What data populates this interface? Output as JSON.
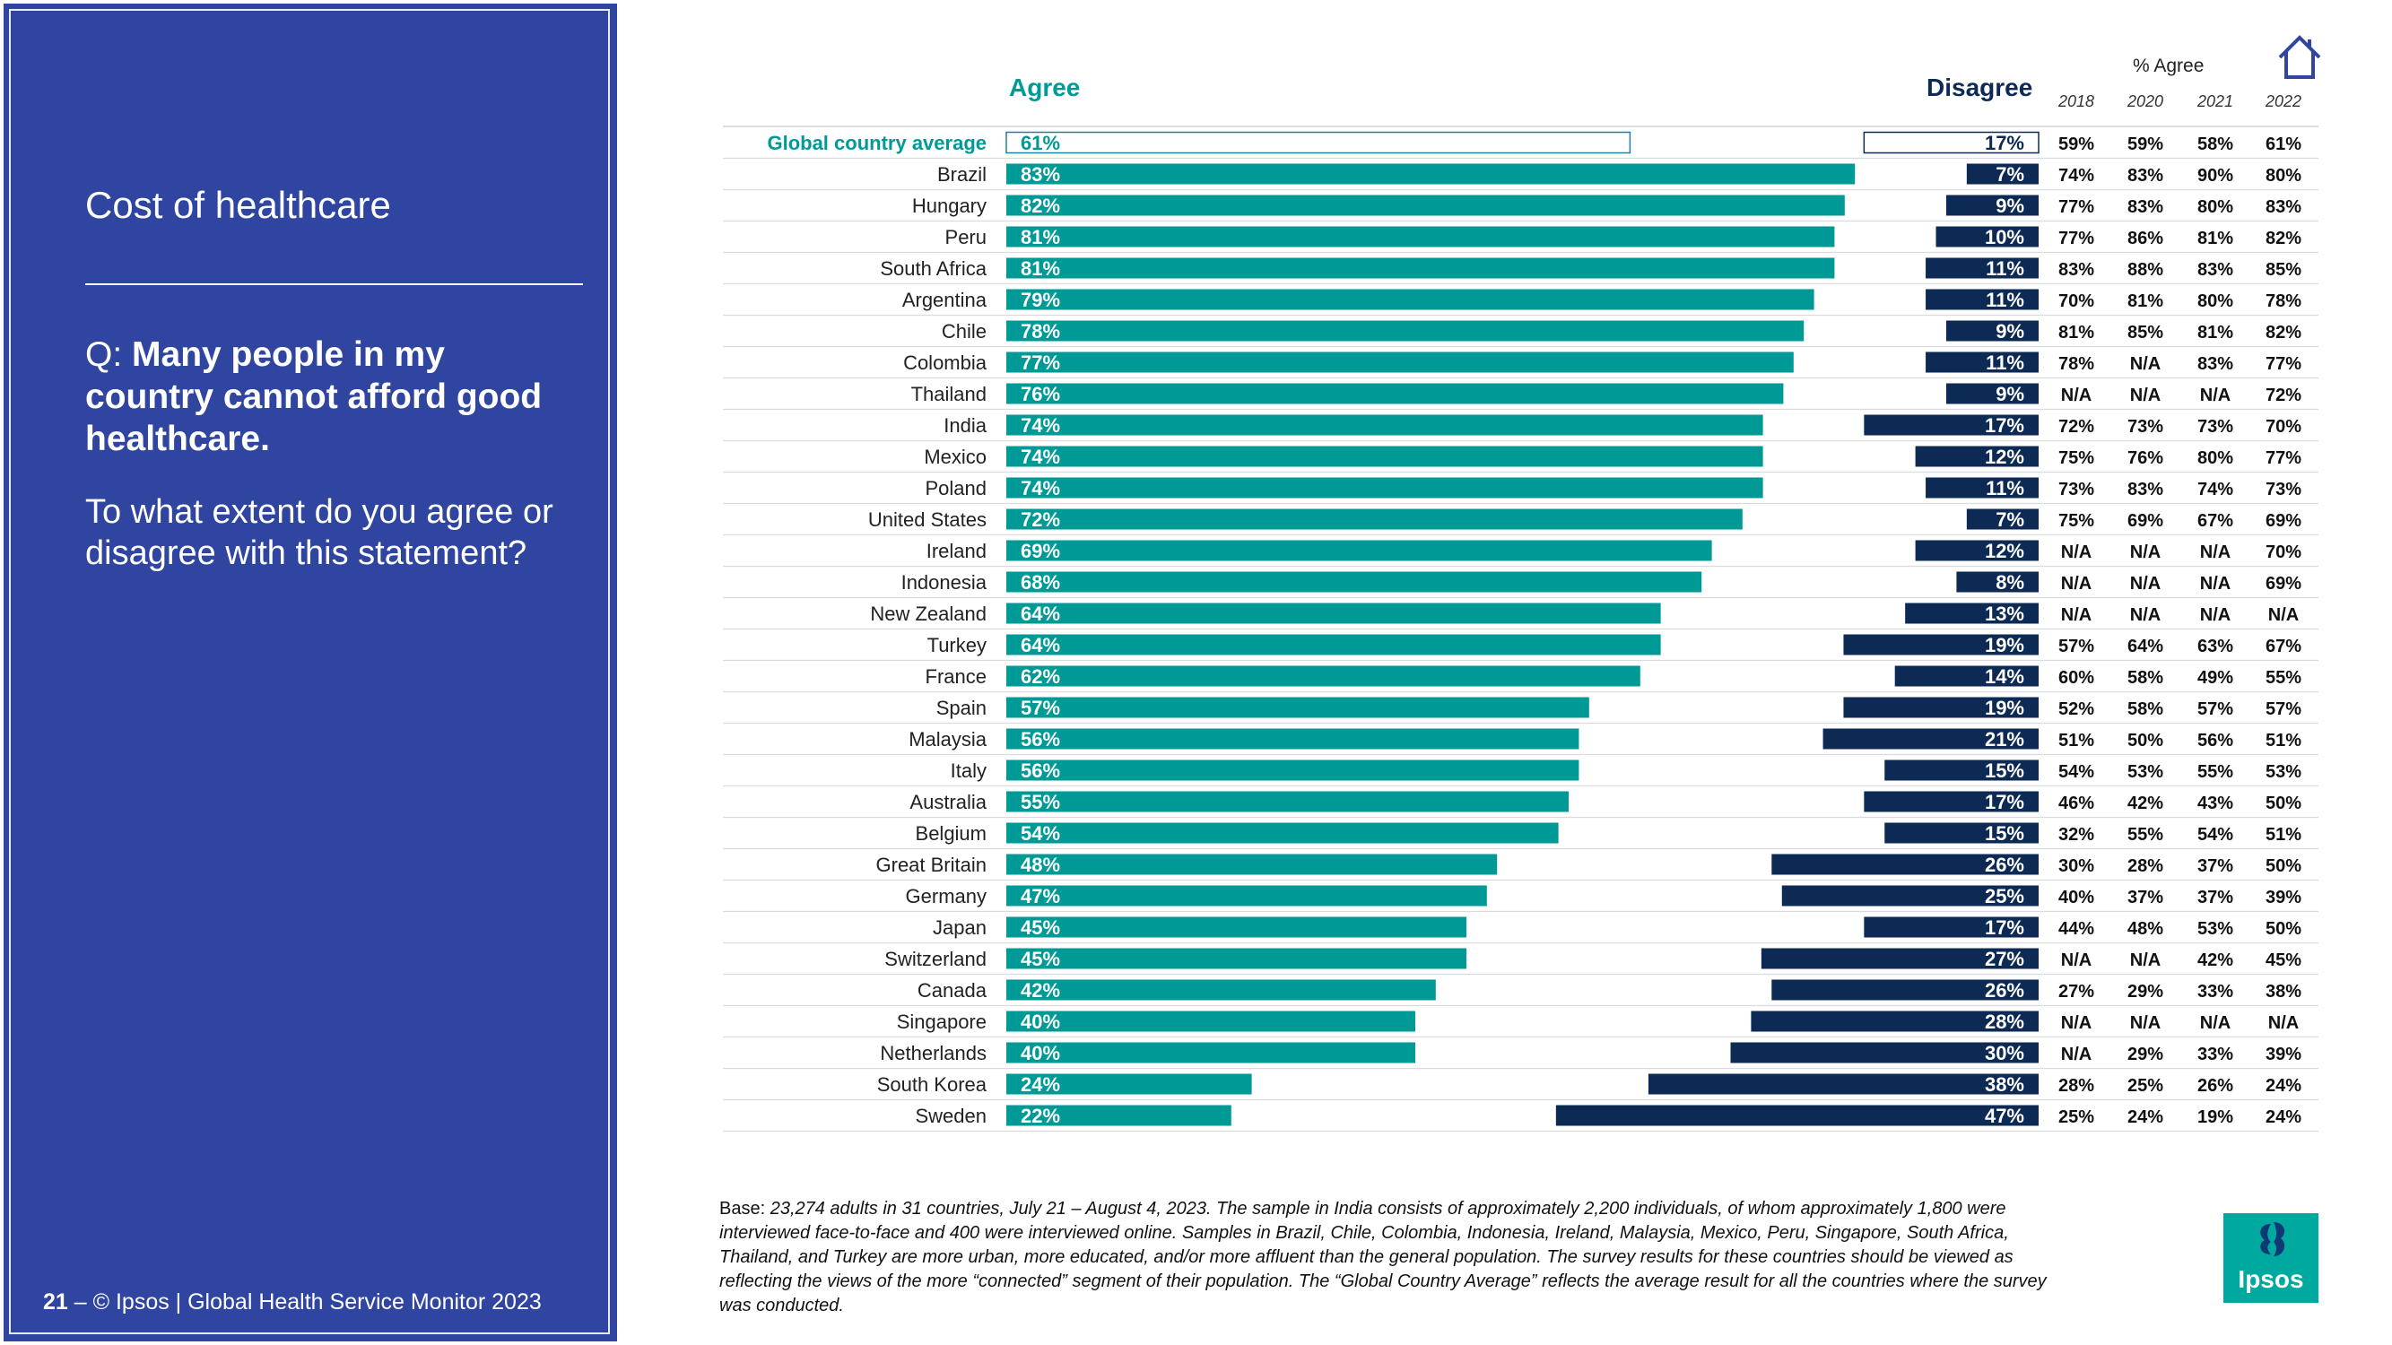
{
  "sidebar": {
    "title": "Cost of healthcare",
    "question_prefix": "Q: ",
    "question_bold": "Many people in my country cannot afford good healthcare.",
    "subquestion": "To what extent do you agree or disagree with this statement?",
    "footer_page": "21",
    "footer_text": " – © Ipsos | Global Health Service Monitor 2023"
  },
  "colors": {
    "sidebar_bg": "#2f45a0",
    "agree": "#009a96",
    "disagree": "#0d2a55"
  },
  "icons": {
    "home": "home-icon",
    "logo": "ipsos-logo"
  },
  "base": {
    "label": "Base: ",
    "text": "23,274 adults in 31 countries, July 21 – August 4, 2023. The sample in India consists of approximately 2,200 individuals, of whom approximately 1,800 were interviewed face-to-face and 400 were interviewed online. Samples in Brazil, Chile, Colombia, Indonesia, Ireland, Malaysia, Mexico, Peru, Singapore, South Africa, Thailand, and Turkey are more urban, more educated, and/or more affluent than the general population. The survey results for these countries should be viewed as reflecting the views of the more “connected” segment of their population. The “Global Country Average” reflects the average result for all the countries where the survey was conducted."
  },
  "logo_text": "Ipsos",
  "chart_data": {
    "type": "bar",
    "title": "Q: Many people in my country cannot afford good healthcare.",
    "agree_label": "Agree",
    "disagree_label": "Disagree",
    "trend_label": "% Agree",
    "years": [
      "2018",
      "2020",
      "2021",
      "2022"
    ],
    "ylim": [
      0,
      100
    ],
    "rows": [
      {
        "country": "Global country average",
        "agree": 61,
        "disagree": 17,
        "trend": [
          "59%",
          "59%",
          "58%",
          "61%"
        ],
        "is_average": true
      },
      {
        "country": "Brazil",
        "agree": 83,
        "disagree": 7,
        "trend": [
          "74%",
          "83%",
          "90%",
          "80%"
        ]
      },
      {
        "country": "Hungary",
        "agree": 82,
        "disagree": 9,
        "trend": [
          "77%",
          "83%",
          "80%",
          "83%"
        ]
      },
      {
        "country": "Peru",
        "agree": 81,
        "disagree": 10,
        "trend": [
          "77%",
          "86%",
          "81%",
          "82%"
        ]
      },
      {
        "country": "South Africa",
        "agree": 81,
        "disagree": 11,
        "trend": [
          "83%",
          "88%",
          "83%",
          "85%"
        ]
      },
      {
        "country": "Argentina",
        "agree": 79,
        "disagree": 11,
        "trend": [
          "70%",
          "81%",
          "80%",
          "78%"
        ]
      },
      {
        "country": "Chile",
        "agree": 78,
        "disagree": 9,
        "trend": [
          "81%",
          "85%",
          "81%",
          "82%"
        ]
      },
      {
        "country": "Colombia",
        "agree": 77,
        "disagree": 11,
        "trend": [
          "78%",
          "N/A",
          "83%",
          "77%"
        ]
      },
      {
        "country": "Thailand",
        "agree": 76,
        "disagree": 9,
        "trend": [
          "N/A",
          "N/A",
          "N/A",
          "72%"
        ]
      },
      {
        "country": "India",
        "agree": 74,
        "disagree": 17,
        "trend": [
          "72%",
          "73%",
          "73%",
          "70%"
        ]
      },
      {
        "country": "Mexico",
        "agree": 74,
        "disagree": 12,
        "trend": [
          "75%",
          "76%",
          "80%",
          "77%"
        ]
      },
      {
        "country": "Poland",
        "agree": 74,
        "disagree": 11,
        "trend": [
          "73%",
          "83%",
          "74%",
          "73%"
        ]
      },
      {
        "country": "United States",
        "agree": 72,
        "disagree": 7,
        "trend": [
          "75%",
          "69%",
          "67%",
          "69%"
        ]
      },
      {
        "country": "Ireland",
        "agree": 69,
        "disagree": 12,
        "trend": [
          "N/A",
          "N/A",
          "N/A",
          "70%"
        ]
      },
      {
        "country": "Indonesia",
        "agree": 68,
        "disagree": 8,
        "trend": [
          "N/A",
          "N/A",
          "N/A",
          "69%"
        ]
      },
      {
        "country": "New Zealand",
        "agree": 64,
        "disagree": 13,
        "trend": [
          "N/A",
          "N/A",
          "N/A",
          "N/A"
        ]
      },
      {
        "country": "Turkey",
        "agree": 64,
        "disagree": 19,
        "trend": [
          "57%",
          "64%",
          "63%",
          "67%"
        ]
      },
      {
        "country": "France",
        "agree": 62,
        "disagree": 14,
        "trend": [
          "60%",
          "58%",
          "49%",
          "55%"
        ]
      },
      {
        "country": "Spain",
        "agree": 57,
        "disagree": 19,
        "trend": [
          "52%",
          "58%",
          "57%",
          "57%"
        ]
      },
      {
        "country": "Malaysia",
        "agree": 56,
        "disagree": 21,
        "trend": [
          "51%",
          "50%",
          "56%",
          "51%"
        ]
      },
      {
        "country": "Italy",
        "agree": 56,
        "disagree": 15,
        "trend": [
          "54%",
          "53%",
          "55%",
          "53%"
        ]
      },
      {
        "country": "Australia",
        "agree": 55,
        "disagree": 17,
        "trend": [
          "46%",
          "42%",
          "43%",
          "50%"
        ]
      },
      {
        "country": "Belgium",
        "agree": 54,
        "disagree": 15,
        "trend": [
          "32%",
          "55%",
          "54%",
          "51%"
        ]
      },
      {
        "country": "Great Britain",
        "agree": 48,
        "disagree": 26,
        "trend": [
          "30%",
          "28%",
          "37%",
          "50%"
        ]
      },
      {
        "country": "Germany",
        "agree": 47,
        "disagree": 25,
        "trend": [
          "40%",
          "37%",
          "37%",
          "39%"
        ]
      },
      {
        "country": "Japan",
        "agree": 45,
        "disagree": 17,
        "trend": [
          "44%",
          "48%",
          "53%",
          "50%"
        ]
      },
      {
        "country": "Switzerland",
        "agree": 45,
        "disagree": 27,
        "trend": [
          "N/A",
          "N/A",
          "42%",
          "45%"
        ]
      },
      {
        "country": "Canada",
        "agree": 42,
        "disagree": 26,
        "trend": [
          "27%",
          "29%",
          "33%",
          "38%"
        ]
      },
      {
        "country": "Singapore",
        "agree": 40,
        "disagree": 28,
        "trend": [
          "N/A",
          "N/A",
          "N/A",
          "N/A"
        ]
      },
      {
        "country": "Netherlands",
        "agree": 40,
        "disagree": 30,
        "trend": [
          "N/A",
          "29%",
          "33%",
          "39%"
        ]
      },
      {
        "country": "South Korea",
        "agree": 24,
        "disagree": 38,
        "trend": [
          "28%",
          "25%",
          "26%",
          "24%"
        ]
      },
      {
        "country": "Sweden",
        "agree": 22,
        "disagree": 47,
        "trend": [
          "25%",
          "24%",
          "19%",
          "24%"
        ]
      }
    ]
  }
}
